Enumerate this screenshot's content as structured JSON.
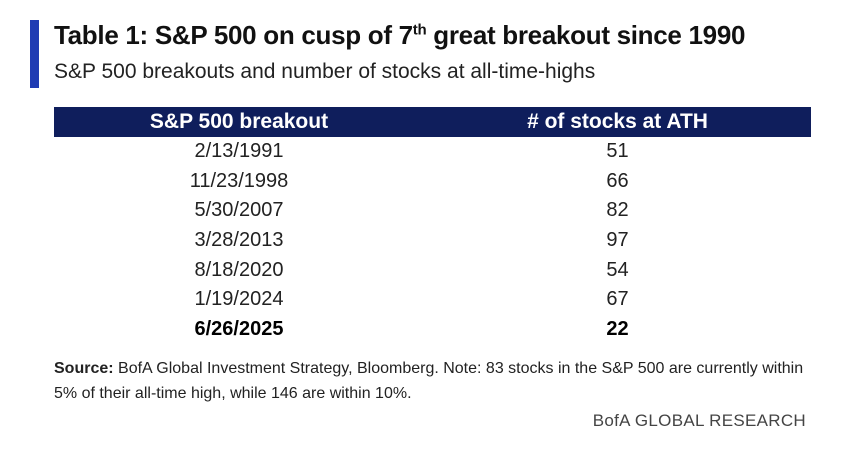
{
  "title": {
    "before_sup": "Table 1: S&P 500 on cusp of 7",
    "sup": "th",
    "after_sup": " great breakout since 1990"
  },
  "subtitle": "S&P 500 breakouts and number of stocks at all-time-highs",
  "table": {
    "headers": [
      "S&P 500 breakout",
      "# of stocks at ATH"
    ],
    "rows": [
      {
        "date": "2/13/1991",
        "count": "51"
      },
      {
        "date": "11/23/1998",
        "count": "66"
      },
      {
        "date": "5/30/2007",
        "count": "82"
      },
      {
        "date": "3/28/2013",
        "count": "97"
      },
      {
        "date": "8/18/2020",
        "count": "54"
      },
      {
        "date": "1/19/2024",
        "count": "67"
      },
      {
        "date": "6/26/2025",
        "count": "22"
      }
    ]
  },
  "source": {
    "label": "Source:",
    "text": " BofA Global Investment Strategy, Bloomberg. Note: 83 stocks in the S&P 500 are currently within 5% of their all-time high, while 146 are within 10%."
  },
  "brand": "BofA GLOBAL RESEARCH",
  "colors": {
    "accent": "#1f3bb3",
    "header_bg": "#0f1e5c"
  }
}
